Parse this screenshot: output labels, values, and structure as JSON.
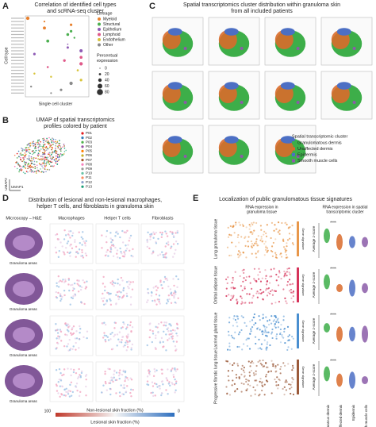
{
  "panels": {
    "a": {
      "letter": "A",
      "title": [
        "Correlation of identified cell types",
        "and scRNA-seq cluster"
      ],
      "y_label": "Cell type",
      "x_label": "Single cell cluster",
      "lineage_title": "Lineage",
      "lineages": [
        "Myeloid",
        "Structural",
        "Epithelium",
        "Lymphoid",
        "Endothelium",
        "Other"
      ],
      "lineage_colors": [
        "#e8812e",
        "#4caf50",
        "#8e5bb5",
        "#e05a8a",
        "#d8c43a",
        "#8a8a8a"
      ],
      "size_title": [
        "Percentual",
        "expression"
      ],
      "sizes": [
        0,
        20,
        40,
        60,
        80
      ]
    },
    "b": {
      "letter": "B",
      "title": [
        "UMAP of spatial transcriptomics",
        "profiles colored by patient"
      ],
      "patients": [
        "P01",
        "P02",
        "P03",
        "P04",
        "P05",
        "P06",
        "P07",
        "P08",
        "P09",
        "P10",
        "P11",
        "P12",
        "P13"
      ],
      "patient_colors": [
        "#e41a1c",
        "#377eb8",
        "#4daf4a",
        "#984ea3",
        "#ff7f00",
        "#c9b22a",
        "#a65628",
        "#f781bf",
        "#999999",
        "#66c2a5",
        "#fc8d62",
        "#8da0cb",
        "#1b9e77"
      ],
      "x_label": "UMAP1",
      "y_label": "UMAP2"
    },
    "c": {
      "letter": "C",
      "title": [
        "Spatial transcriptomics cluster distribution within granuloma skin",
        "from all included patients"
      ],
      "legend_title": "Spatial transcriptomic cluster",
      "clusters": [
        "Granulomatous dermis",
        "Unaffected dermis",
        "Epidermis",
        "Smooth muscle cells"
      ],
      "cluster_colors": [
        "#3dae49",
        "#d96b2b",
        "#4c6fc4",
        "#8b5ca8"
      ]
    },
    "d": {
      "letter": "D",
      "title": [
        "Distribution of lesional and non-lesional macrophages,",
        "helper T cells, and fibroblasts in granuloma skin"
      ],
      "columns": [
        "Microscopy – H&E",
        "Macrophages",
        "Helper T cells",
        "Fibroblasts"
      ],
      "annotation": "Granuloma areas",
      "colorbar": {
        "max": 100,
        "min": 0
      },
      "bar_labels": [
        "Non-lesional skin fraction (%)",
        "Lesional skin fraction (%)"
      ]
    },
    "e": {
      "letter": "E",
      "title": "Localization of public granulomatous tissue signatures",
      "subtitles": [
        [
          "RNA expression in",
          "granuloma tissue"
        ],
        [
          "RNA expression in spatial",
          "transcriptomic cluster"
        ]
      ],
      "rows": [
        "Lung granuloma tissue",
        "Orbital adipose tissue",
        "Lacrimal gland tissue",
        "Progressive fibrotic lung tissue"
      ],
      "scale_label": "Gene signature",
      "y_label": "Average z-score",
      "significance": "****",
      "x_labels": [
        "Granulomatous dermis",
        "Unaffected dermis",
        "Epidermis",
        "Smooth muscle cells"
      ]
    }
  }
}
